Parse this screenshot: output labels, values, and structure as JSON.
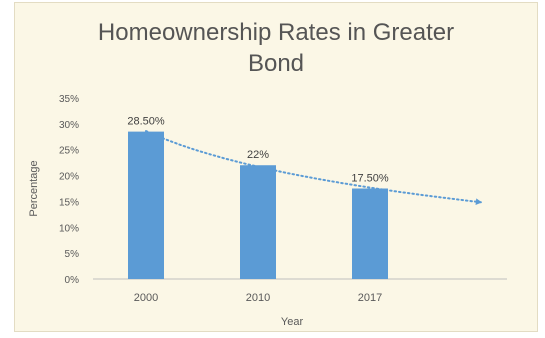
{
  "chart_data": {
    "type": "bar",
    "title_lines": [
      "Homeownership Rates in Greater",
      "Bond"
    ],
    "xlabel": "Year",
    "ylabel": "Percentage",
    "categories": [
      "2000",
      "2010",
      "2017"
    ],
    "values": [
      28.5,
      22,
      17.5
    ],
    "data_labels": [
      "28.50%",
      "22%",
      "17.50%"
    ],
    "ylim": [
      0,
      35
    ],
    "yticks": [
      0,
      5,
      10,
      15,
      20,
      25,
      30,
      35
    ],
    "ytick_labels": [
      "0%",
      "5%",
      "10%",
      "15%",
      "20%",
      "25%",
      "30%",
      "35%"
    ],
    "trendline": {
      "type": "logarithmic",
      "style": "dotted",
      "extends_past_last_category": true
    },
    "legend": "none",
    "grid": false
  },
  "colors": {
    "bar": "#5b9bd5",
    "trendline": "#5b9bd5",
    "axis": "#bfbfbf",
    "text": "#595959",
    "background": "#fbf7e6"
  }
}
